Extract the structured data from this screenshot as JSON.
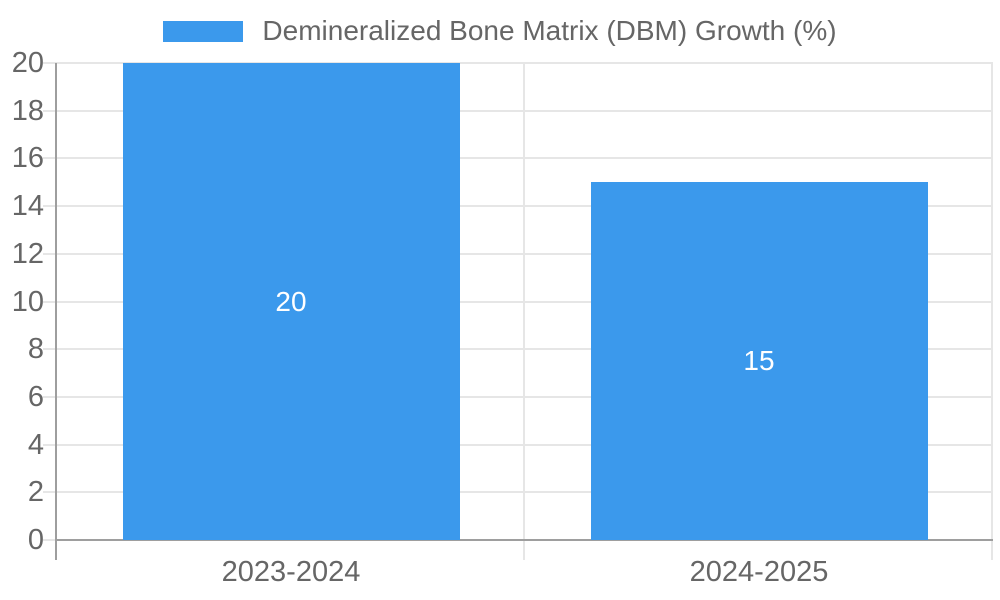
{
  "legend": {
    "label": "Demineralized Bone Matrix (DBM) Growth (%)"
  },
  "chart_data": {
    "type": "bar",
    "title": "Demineralized Bone Matrix (DBM) Growth (%)",
    "categories": [
      "2023-2024",
      "2024-2025"
    ],
    "values": [
      20,
      15
    ],
    "value_labels": [
      "20",
      "15"
    ],
    "series": [
      {
        "name": "Demineralized Bone Matrix (DBM) Growth (%)",
        "values": [
          20,
          15
        ]
      }
    ],
    "xlabel": "",
    "ylabel": "",
    "ylim": [
      0,
      20
    ],
    "yticks": [
      0,
      2,
      4,
      6,
      8,
      10,
      12,
      14,
      16,
      18,
      20
    ],
    "grid": true,
    "legend_position": "top",
    "colors": {
      "bar": "#3b99ec",
      "grid": "#e6e6e6",
      "axis": "#9e9e9e",
      "text": "#666666",
      "value_label": "#ffffff"
    }
  }
}
